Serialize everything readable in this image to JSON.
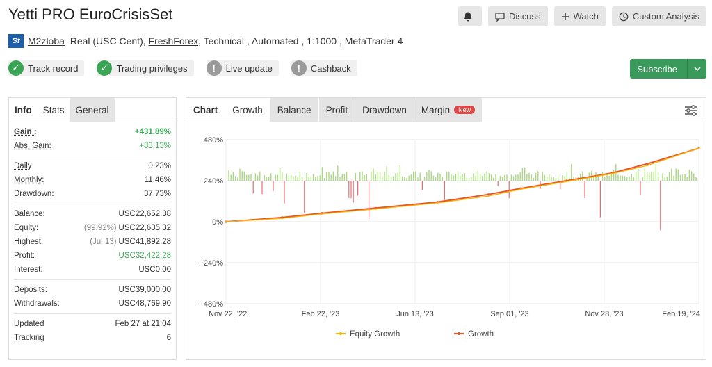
{
  "header": {
    "title": "Yetti PRO EuroCrisisSet"
  },
  "top_actions": {
    "discuss": "Discuss",
    "watch": "Watch",
    "custom_analysis": "Custom Analysis"
  },
  "meta": {
    "logo_text": "Sf",
    "user": "M2zloba",
    "account": "Real (USC Cent),",
    "broker": "FreshForex",
    "rest": ", Technical , Automated , 1:1000 , MetaTrader 4"
  },
  "badges": [
    {
      "label": "Track record",
      "status": "ok"
    },
    {
      "label": "Trading privileges",
      "status": "ok"
    },
    {
      "label": "Live update",
      "status": "na"
    },
    {
      "label": "Cashback",
      "status": "na"
    }
  ],
  "subscribe": {
    "label": "Subscribe"
  },
  "left_tabs": {
    "info": "Info",
    "stats": "Stats",
    "general": "General"
  },
  "stats": {
    "gain_k": "Gain :",
    "gain_v": "+431.89%",
    "absgain_k": "Abs. Gain:",
    "absgain_v": "+83.13%",
    "daily_k": "Daily",
    "daily_v": "0.23%",
    "monthly_k": "Monthly:",
    "monthly_v": "11.46%",
    "drawdown_k": "Drawdown:",
    "drawdown_v": "37.73%",
    "balance_k": "Balance:",
    "balance_v": "USC22,652.38",
    "equity_k": "Equity:",
    "equity_pre": "(99.92%)",
    "equity_v": "USC22,635.32",
    "highest_k": "Highest:",
    "highest_pre": "(Jul 13)",
    "highest_v": "USC41,892.28",
    "profit_k": "Profit:",
    "profit_v": "USC32,422.28",
    "interest_k": "Interest:",
    "interest_v": "USC0.00",
    "deposits_k": "Deposits:",
    "deposits_v": "USC39,000.00",
    "withdrawals_k": "Withdrawals:",
    "withdrawals_v": "USC48,769.90",
    "updated_k": "Updated",
    "updated_v": "Feb 27 at 21:04",
    "tracking_k": "Tracking",
    "tracking_v": "6"
  },
  "chart_tabs": {
    "chart": "Chart",
    "growth": "Growth",
    "balance": "Balance",
    "profit": "Profit",
    "drawdown": "Drawdown",
    "margin": "Margin",
    "new_badge": "New"
  },
  "colors": {
    "growth": "#e8542c",
    "equity": "#f4b400",
    "bars_pos": "#a8d97c",
    "bars_neg": "#ef6a6a",
    "accent_green": "#3aa655"
  },
  "chart_data": {
    "type": "line",
    "title": "",
    "ylim": [
      -480,
      480
    ],
    "yticks": [
      "480%",
      "240%",
      "0%",
      "−240%",
      "−480%"
    ],
    "xticks": [
      "Nov 22, '22",
      "Feb 22, '23",
      "Jun 13, '23",
      "Sep 01, '23",
      "Nov 28, '23",
      "Feb 19, '24"
    ],
    "legend": {
      "position": "bottom",
      "items": [
        "Equity Growth",
        "Growth"
      ]
    },
    "series": [
      {
        "name": "Growth",
        "x": [
          "2022-11-22",
          "2023-01-15",
          "2023-02-22",
          "2023-04-15",
          "2023-06-13",
          "2023-08-01",
          "2023-09-01",
          "2023-10-15",
          "2023-11-28",
          "2024-01-01",
          "2024-02-19"
        ],
        "values": [
          0,
          25,
          50,
          80,
          115,
          160,
          195,
          240,
          285,
          340,
          430
        ]
      },
      {
        "name": "Equity Growth",
        "x": [
          "2022-11-22",
          "2023-01-15",
          "2023-02-22",
          "2023-04-15",
          "2023-06-13",
          "2023-08-01",
          "2023-09-01",
          "2023-10-15",
          "2023-11-28",
          "2024-01-01",
          "2024-02-19"
        ],
        "values": [
          0,
          20,
          45,
          75,
          110,
          150,
          190,
          235,
          282,
          330,
          430
        ]
      }
    ]
  }
}
